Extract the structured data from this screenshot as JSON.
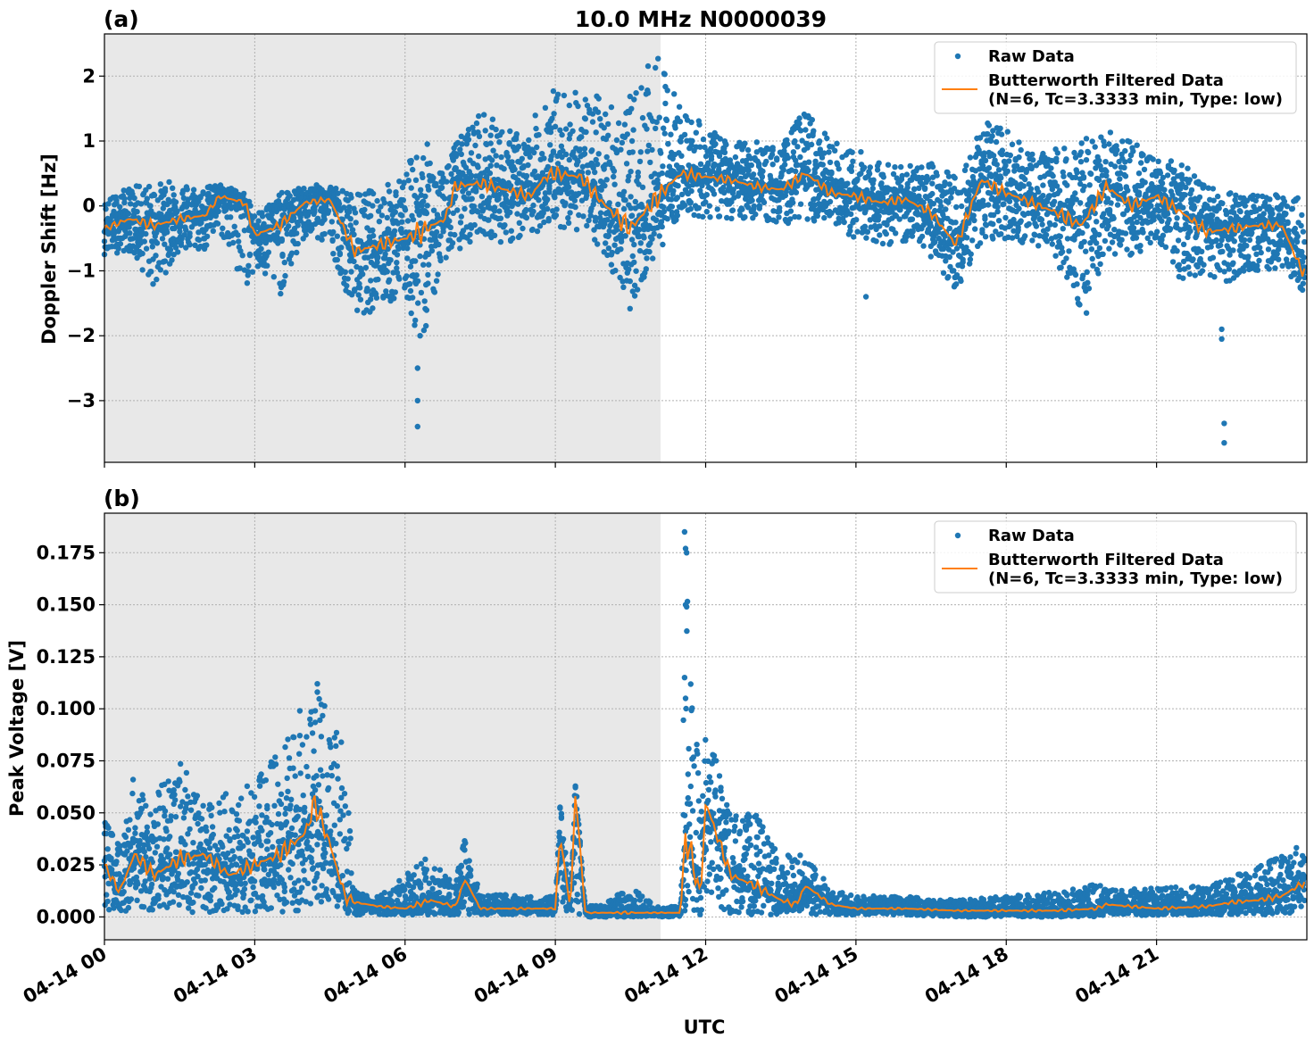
{
  "title": "10.0 MHz N0000039",
  "xlabel": "UTC",
  "x_ticks": [
    "04-14 00",
    "04-14 03",
    "04-14 06",
    "04-14 09",
    "04-14 12",
    "04-14 15",
    "04-14 18",
    "04-14 21"
  ],
  "legend": {
    "raw": "Raw Data",
    "filtered_line1": "Butterworth Filtered Data",
    "filtered_line2": "(N=6, Tc=3.3333 min, Type: low)"
  },
  "colors": {
    "raw": "#1f77b4",
    "filtered": "#ff7f0e",
    "shade": "#e8e8e8"
  },
  "chart_data": [
    {
      "type": "scatter",
      "panel_label": "(a)",
      "ylabel": "Doppler Shift [Hz]",
      "xlim_hours": [
        0,
        24
      ],
      "ylim": [
        -3.95,
        2.65
      ],
      "y_ticks": [
        2,
        1,
        0,
        -1,
        -2,
        -3
      ],
      "y_tick_labels": [
        "2",
        "1",
        "0",
        "−1",
        "−2",
        "−3"
      ],
      "grid": true,
      "legend_position": "top-right",
      "shaded_x_hours": [
        0,
        11.1
      ],
      "filtered": {
        "name": "Butterworth Filtered Data",
        "x": [
          0,
          0.5,
          1,
          1.5,
          2,
          2.3,
          2.8,
          3,
          3.5,
          4,
          4.5,
          5,
          5.5,
          6,
          6.3,
          6.8,
          7,
          7.5,
          8,
          8.5,
          8.8,
          9,
          9.5,
          10,
          10.5,
          11,
          11.5,
          12,
          12.5,
          13,
          13.5,
          14,
          14.5,
          15,
          15.5,
          16,
          16.5,
          17,
          17.5,
          18,
          18.5,
          19,
          19.5,
          20,
          20.5,
          21,
          21.5,
          22,
          22.5,
          23,
          23.5,
          23.9
        ],
        "y": [
          -0.35,
          -0.2,
          -0.3,
          -0.2,
          -0.15,
          0.15,
          0.05,
          -0.45,
          -0.3,
          0.05,
          0.1,
          -0.7,
          -0.6,
          -0.5,
          -0.4,
          -0.2,
          0.3,
          0.35,
          0.25,
          0.15,
          0.45,
          0.5,
          0.45,
          0.0,
          -0.35,
          0.1,
          0.5,
          0.45,
          0.4,
          0.3,
          0.25,
          0.5,
          0.2,
          0.15,
          0.05,
          0.1,
          -0.1,
          -0.6,
          0.4,
          0.2,
          0.05,
          -0.1,
          -0.3,
          0.3,
          0.0,
          0.15,
          -0.1,
          -0.4,
          -0.35,
          -0.3,
          -0.3,
          -1.0
        ]
      },
      "raw": {
        "name": "Raw Data",
        "x": [
          0,
          0.5,
          1,
          1.5,
          2,
          2.3,
          2.8,
          3,
          3.5,
          4,
          4.5,
          5,
          5.5,
          6,
          6.3,
          6.8,
          7,
          7.5,
          8,
          8.5,
          8.8,
          9,
          9.5,
          10,
          10.5,
          11,
          11.5,
          12,
          12.5,
          13,
          13.5,
          14,
          14.5,
          15,
          15.5,
          16,
          16.5,
          17,
          17.5,
          18,
          18.5,
          19,
          19.5,
          20,
          20.5,
          21,
          21.5,
          22,
          22.5,
          23,
          23.5,
          23.9
        ],
        "ymin": [
          -0.75,
          -0.7,
          -1.3,
          -0.7,
          -0.7,
          -0.4,
          -1.3,
          -1.0,
          -1.4,
          -0.5,
          -0.6,
          -1.7,
          -1.6,
          -1.4,
          -2.2,
          -0.8,
          -0.8,
          -0.4,
          -0.6,
          -0.5,
          -0.3,
          -0.3,
          -0.4,
          -0.8,
          -1.6,
          -0.8,
          -0.1,
          -0.2,
          -0.2,
          -0.2,
          -0.3,
          -0.2,
          -0.4,
          -0.5,
          -0.6,
          -0.6,
          -0.8,
          -1.3,
          -0.6,
          -0.5,
          -0.6,
          -0.9,
          -1.6,
          -0.8,
          -0.8,
          -0.6,
          -1.3,
          -1.3,
          -1.2,
          -1.0,
          -1.0,
          -1.3
        ],
        "ymax": [
          0.1,
          0.3,
          0.35,
          0.4,
          0.3,
          0.35,
          0.2,
          -0.1,
          0.2,
          0.3,
          0.35,
          0.2,
          0.3,
          0.5,
          1.15,
          0.5,
          1.0,
          1.5,
          1.2,
          1.1,
          2.0,
          1.8,
          1.8,
          1.7,
          1.7,
          2.35,
          1.6,
          1.2,
          1.0,
          1.0,
          0.9,
          1.55,
          1.0,
          0.9,
          0.7,
          0.6,
          0.7,
          0.5,
          1.3,
          1.2,
          0.8,
          0.9,
          1.0,
          1.2,
          1.0,
          0.8,
          0.7,
          0.3,
          0.2,
          0.2,
          0.2,
          0.2
        ]
      },
      "outliers": {
        "x": [
          6.25,
          6.25,
          6.25,
          6.3,
          22.3,
          22.3,
          22.35,
          22.35,
          19.6,
          15.2
        ],
        "y": [
          -2.5,
          -3.0,
          -3.4,
          -2.0,
          -1.9,
          -2.05,
          -3.35,
          -3.65,
          -1.65,
          -1.4
        ]
      }
    },
    {
      "type": "scatter",
      "panel_label": "(b)",
      "ylabel": "Peak Voltage [V]",
      "xlim_hours": [
        0,
        24
      ],
      "ylim": [
        -0.011,
        0.194
      ],
      "y_ticks": [
        0.0,
        0.025,
        0.05,
        0.075,
        0.1,
        0.125,
        0.15,
        0.175
      ],
      "y_tick_labels": [
        "0.000",
        "0.025",
        "0.050",
        "0.075",
        "0.100",
        "0.125",
        "0.150",
        "0.175"
      ],
      "grid": true,
      "legend_position": "top-right",
      "shaded_x_hours": [
        0,
        11.1
      ],
      "filtered": {
        "name": "Butterworth Filtered Data",
        "x": [
          0,
          0.3,
          0.6,
          1,
          1.5,
          2,
          2.5,
          3,
          3.5,
          4,
          4.2,
          4.5,
          4.8,
          5,
          5.5,
          6,
          6.5,
          7,
          7.2,
          7.5,
          8,
          8.5,
          9,
          9.1,
          9.3,
          9.4,
          9.6,
          10,
          10.5,
          11,
          11.5,
          11.6,
          11.9,
          12,
          12.5,
          13,
          13.5,
          13.8,
          14,
          14.5,
          15,
          16,
          17,
          18,
          19,
          19.8,
          20,
          21,
          22,
          22.5,
          23,
          23.5,
          23.9
        ],
        "y": [
          0.025,
          0.012,
          0.03,
          0.02,
          0.028,
          0.03,
          0.02,
          0.025,
          0.03,
          0.04,
          0.055,
          0.035,
          0.01,
          0.007,
          0.005,
          0.004,
          0.008,
          0.005,
          0.018,
          0.004,
          0.004,
          0.004,
          0.004,
          0.04,
          0.003,
          0.06,
          0.002,
          0.002,
          0.002,
          0.002,
          0.002,
          0.04,
          0.01,
          0.055,
          0.02,
          0.015,
          0.008,
          0.006,
          0.015,
          0.006,
          0.004,
          0.004,
          0.003,
          0.003,
          0.003,
          0.004,
          0.006,
          0.004,
          0.005,
          0.007,
          0.008,
          0.01,
          0.016
        ]
      },
      "raw": {
        "name": "Raw Data",
        "x": [
          0,
          0.3,
          0.6,
          1,
          1.5,
          2,
          2.5,
          3,
          3.5,
          4,
          4.2,
          4.5,
          4.8,
          5,
          5.5,
          6,
          6.5,
          7,
          7.2,
          7.5,
          8,
          8.5,
          9,
          9.1,
          9.3,
          9.4,
          9.6,
          10,
          10.5,
          11,
          11.5,
          11.6,
          11.9,
          12,
          12.5,
          13,
          13.5,
          13.8,
          14,
          14.5,
          15,
          16,
          17,
          18,
          19,
          19.8,
          20,
          21,
          22,
          22.5,
          23,
          23.5,
          23.9
        ],
        "ymin": [
          0.002,
          0.002,
          0.002,
          0.002,
          0.002,
          0.002,
          0.002,
          0.002,
          0.002,
          0.002,
          0.002,
          0.002,
          0.002,
          0.001,
          0.001,
          0.001,
          0.001,
          0.001,
          0.001,
          0.001,
          0.001,
          0.001,
          0.001,
          0.001,
          0.001,
          0.001,
          0.0,
          0.0,
          0.0,
          0.0,
          0.0,
          0.0,
          0.001,
          0.001,
          0.001,
          0.001,
          0.001,
          0.001,
          0.001,
          0.001,
          0.001,
          0.001,
          0.0,
          0.0,
          0.0,
          0.0,
          0.001,
          0.0,
          0.001,
          0.001,
          0.001,
          0.001,
          0.002
        ],
        "ymax": [
          0.047,
          0.035,
          0.07,
          0.06,
          0.078,
          0.055,
          0.06,
          0.065,
          0.08,
          0.099,
          0.112,
          0.1,
          0.08,
          0.012,
          0.01,
          0.02,
          0.03,
          0.015,
          0.04,
          0.01,
          0.011,
          0.01,
          0.01,
          0.057,
          0.01,
          0.066,
          0.005,
          0.007,
          0.015,
          0.005,
          0.005,
          0.185,
          0.055,
          0.097,
          0.05,
          0.05,
          0.03,
          0.03,
          0.03,
          0.014,
          0.01,
          0.01,
          0.008,
          0.01,
          0.012,
          0.016,
          0.014,
          0.014,
          0.015,
          0.02,
          0.025,
          0.03,
          0.035
        ]
      },
      "outliers": {
        "x": [
          11.58,
          11.6,
          11.62,
          11.6,
          11.62,
          11.58,
          11.6,
          4.25,
          4.25,
          3.9
        ],
        "y": [
          0.185,
          0.177,
          0.175,
          0.15,
          0.149,
          0.115,
          0.105,
          0.112,
          0.108,
          0.099
        ]
      }
    }
  ]
}
